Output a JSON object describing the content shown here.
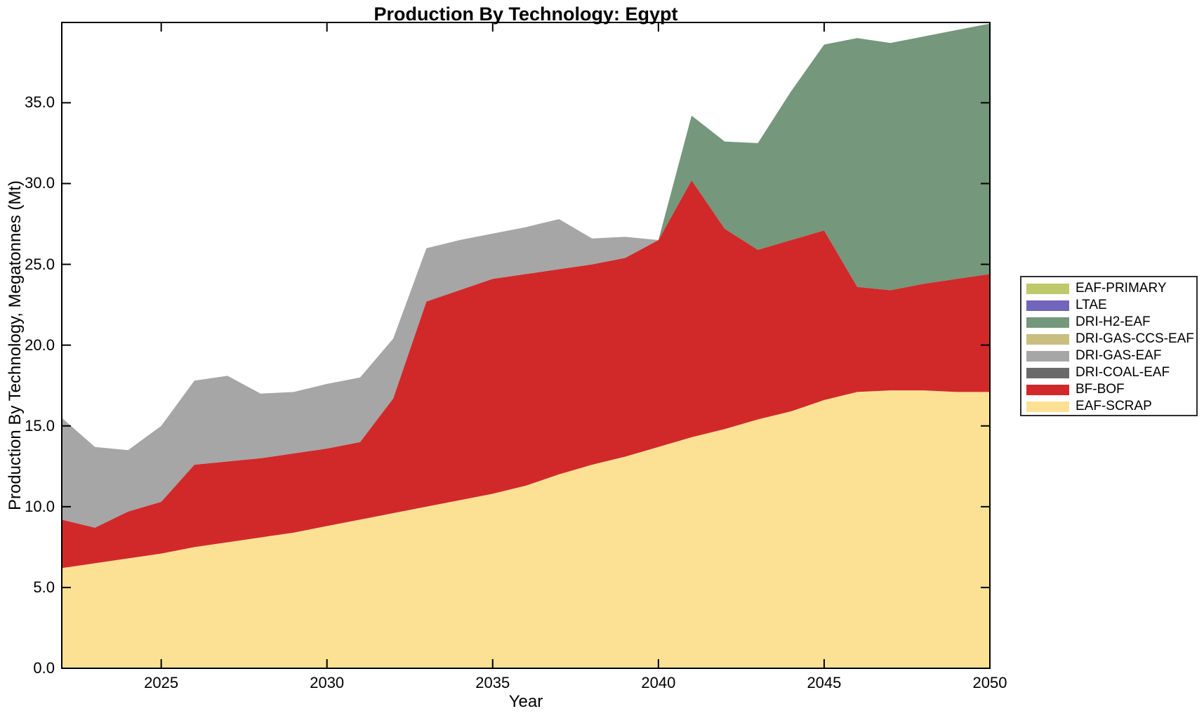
{
  "title": "Production By Technology: Egypt",
  "chart_data": {
    "type": "area",
    "stacked": true,
    "title": "Production By Technology: Egypt",
    "xlabel": "Year",
    "ylabel": "Production By Technology, Megatonnes (Mt)",
    "xlim": [
      2022,
      2050
    ],
    "ylim": [
      0,
      39.97
    ],
    "grid": false,
    "legend_position": "outside-right",
    "axis_color": "#000000",
    "x": [
      2022,
      2023,
      2024,
      2025,
      2026,
      2027,
      2028,
      2029,
      2030,
      2031,
      2032,
      2033,
      2034,
      2035,
      2036,
      2037,
      2038,
      2039,
      2040,
      2041,
      2042,
      2043,
      2044,
      2045,
      2046,
      2047,
      2048,
      2049,
      2050
    ],
    "xticks": [
      2025,
      2030,
      2035,
      2040,
      2045,
      2050
    ],
    "yticks": [
      0,
      5,
      10,
      15,
      20,
      25,
      30,
      35
    ],
    "series": [
      {
        "name": "EAF-SCRAP",
        "color": "#fce195",
        "values": [
          6.2,
          6.5,
          6.8,
          7.1,
          7.5,
          7.8,
          8.1,
          8.4,
          8.8,
          9.2,
          9.6,
          10.0,
          10.4,
          10.8,
          11.3,
          12.0,
          12.6,
          13.1,
          13.7,
          14.3,
          14.8,
          15.4,
          15.9,
          16.6,
          17.1,
          17.2,
          17.2,
          17.1,
          17.1
        ]
      },
      {
        "name": "BF-BOF",
        "color": "#d1292a",
        "values": [
          3.0,
          2.2,
          2.9,
          3.2,
          5.1,
          5.0,
          4.9,
          4.9,
          4.8,
          4.8,
          7.1,
          12.7,
          13.0,
          13.3,
          13.1,
          12.7,
          12.4,
          12.3,
          12.8,
          15.9,
          12.4,
          10.5,
          10.6,
          10.5,
          6.5,
          6.2,
          6.6,
          7.0,
          7.3
        ]
      },
      {
        "name": "DRI-COAL-EAF",
        "color": "#6a6a6a",
        "values": [
          0,
          0,
          0,
          0,
          0,
          0,
          0,
          0,
          0,
          0,
          0,
          0,
          0,
          0,
          0,
          0,
          0,
          0,
          0,
          0,
          0,
          0,
          0,
          0,
          0,
          0,
          0,
          0,
          0
        ]
      },
      {
        "name": "DRI-GAS-EAF",
        "color": "#a6a6a6",
        "values": [
          6.3,
          5.0,
          3.8,
          4.7,
          5.2,
          5.3,
          4.0,
          3.8,
          4.0,
          4.0,
          3.7,
          3.3,
          3.1,
          2.8,
          2.9,
          3.1,
          1.6,
          1.3,
          0,
          0,
          0,
          0,
          0,
          0,
          0,
          0,
          0,
          0,
          0
        ]
      },
      {
        "name": "DRI-GAS-CCS-EAF",
        "color": "#cabd80",
        "values": [
          0,
          0,
          0,
          0,
          0,
          0,
          0,
          0,
          0,
          0,
          0,
          0,
          0,
          0,
          0,
          0,
          0,
          0,
          0,
          0,
          0,
          0,
          0,
          0,
          0,
          0,
          0,
          0,
          0
        ]
      },
      {
        "name": "DRI-H2-EAF",
        "color": "#75977b",
        "values": [
          0,
          0,
          0,
          0,
          0,
          0,
          0,
          0,
          0,
          0,
          0,
          0,
          0,
          0,
          0,
          0,
          0,
          0,
          0,
          4.0,
          5.4,
          6.6,
          9.2,
          11.5,
          15.4,
          15.3,
          15.3,
          15.4,
          15.5
        ]
      },
      {
        "name": "LTAE",
        "color": "#7165bc",
        "values": [
          0,
          0,
          0,
          0,
          0,
          0,
          0,
          0,
          0,
          0,
          0,
          0,
          0,
          0,
          0,
          0,
          0,
          0,
          0,
          0,
          0,
          0,
          0,
          0,
          0,
          0,
          0,
          0,
          0
        ]
      },
      {
        "name": "EAF-PRIMARY",
        "color": "#bdc96b",
        "values": [
          0,
          0,
          0,
          0,
          0,
          0,
          0,
          0,
          0,
          0,
          0,
          0,
          0,
          0,
          0,
          0,
          0,
          0,
          0,
          0,
          0,
          0,
          0,
          0,
          0,
          0,
          0,
          0,
          0
        ]
      }
    ],
    "legend_entries_top_down": [
      "EAF-PRIMARY",
      "LTAE",
      "DRI-H2-EAF",
      "DRI-GAS-CCS-EAF",
      "DRI-GAS-EAF",
      "DRI-COAL-EAF",
      "BF-BOF",
      "EAF-SCRAP"
    ]
  }
}
